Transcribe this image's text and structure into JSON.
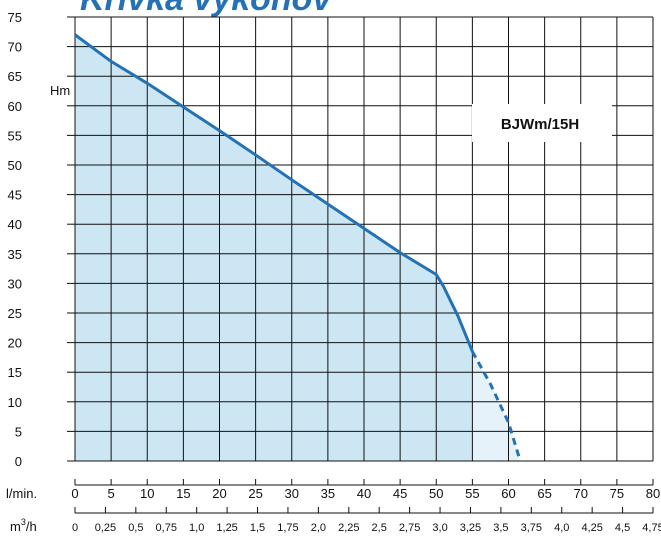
{
  "chart_data": {
    "type": "area",
    "title": "Krivka výkonov",
    "model_label": "BJWm/15H",
    "ylabel": "Hm",
    "y_ticks": [
      0,
      5,
      10,
      15,
      20,
      25,
      30,
      35,
      40,
      45,
      50,
      55,
      60,
      65,
      70,
      75
    ],
    "ylim": [
      0,
      75
    ],
    "x_primary": {
      "label": "l/min.",
      "ticks": [
        0,
        5,
        10,
        15,
        20,
        25,
        30,
        35,
        40,
        45,
        50,
        55,
        60,
        65,
        70,
        75,
        80
      ]
    },
    "x_secondary": {
      "label_main": "m",
      "label_sup": "3",
      "label_tail": "/h",
      "ticks": [
        "0",
        "0,25",
        "0,5",
        "0,75",
        "1,0",
        "1,25",
        "1,5",
        "1,75",
        "2,0",
        "2,25",
        "2,5",
        "2,75",
        "3,0",
        "3,25",
        "3,5",
        "3,75",
        "4,0",
        "4,25",
        "4,5",
        "4,75"
      ]
    },
    "xlim": [
      0,
      80
    ],
    "grid": true,
    "series": [
      {
        "style": "solid",
        "x": [
          0,
          5,
          10,
          15,
          20,
          25,
          30,
          35,
          40,
          45,
          50,
          51,
          52,
          53,
          54,
          55
        ],
        "y": [
          72,
          67.5,
          63.8,
          59.8,
          55.8,
          51.7,
          47.5,
          43.4,
          39.3,
          35.2,
          31.5,
          29.5,
          27,
          24.5,
          21.5,
          18.5
        ]
      },
      {
        "style": "dashed",
        "x": [
          55,
          57.5,
          60,
          61.5
        ],
        "y": [
          18.5,
          13,
          6.5,
          0.5
        ]
      }
    ],
    "colors": {
      "line": "#2472b5",
      "fill": "#cde6f3",
      "fill_light": "#e5f2f9",
      "title": "#2472b5",
      "grid": "#111111"
    }
  }
}
